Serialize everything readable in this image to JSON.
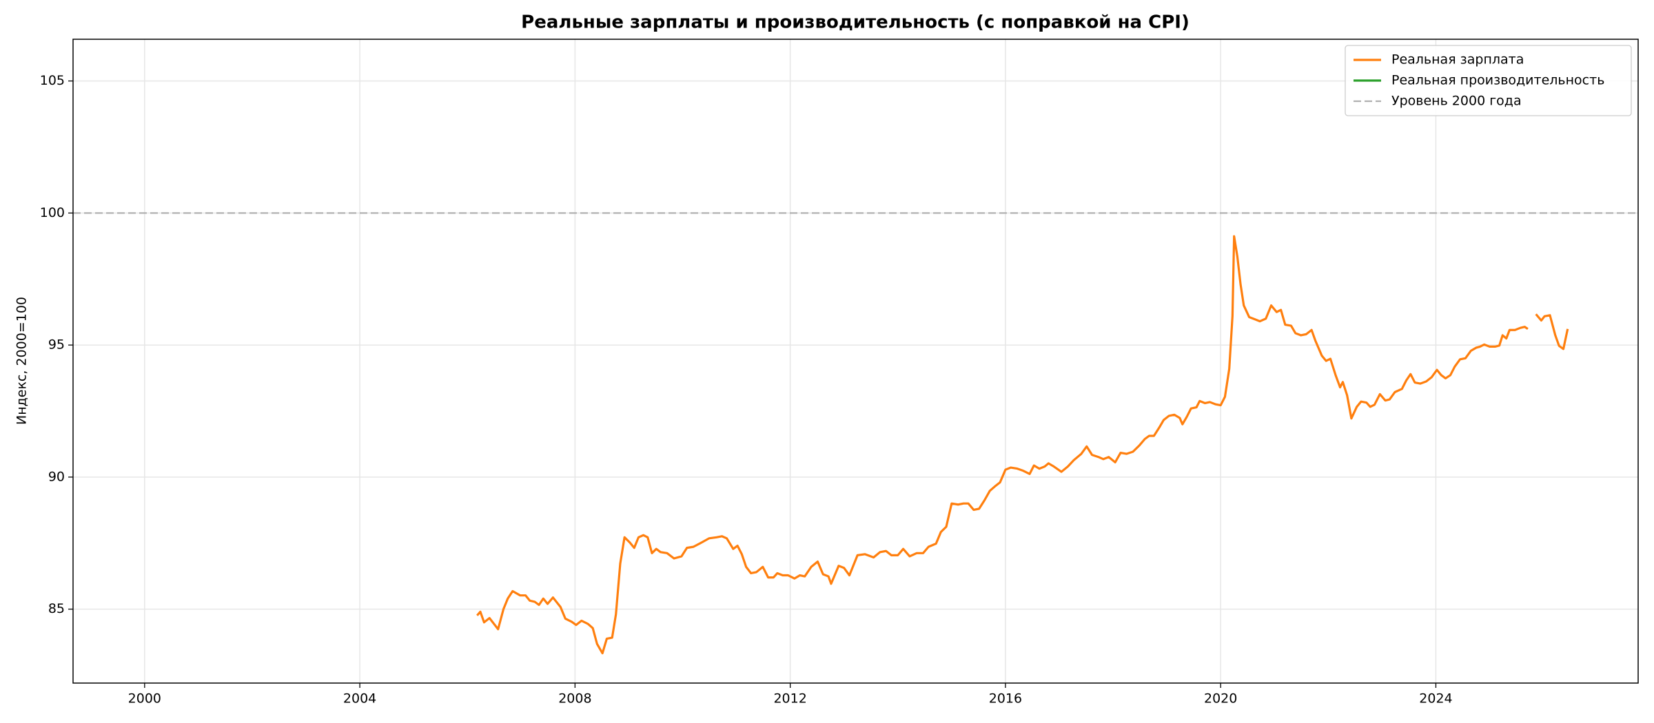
{
  "chart_data": {
    "type": "line",
    "title": "Реальные зарплаты и производительность (с поправкой на CPI)",
    "y_label": "Индекс, 2000=100",
    "xlim": [
      1998.67,
      2027.76
    ],
    "ylim": [
      82.2,
      106.58
    ],
    "xticks": [
      2000,
      2004,
      2008,
      2012,
      2016,
      2020,
      2024
    ],
    "yticks": [
      85,
      90,
      95,
      100,
      105
    ],
    "grid": true,
    "legend": "upper right",
    "reference_line": {
      "name": "Уровень 2000 года",
      "value": 100,
      "color": "#b0b0b0",
      "style": "dashed"
    },
    "series": [
      {
        "name": "Реальная зарплата",
        "color": "#ff7f0e",
        "x": [
          2006.18,
          2006.24,
          2006.31,
          2006.41,
          2006.57,
          2006.67,
          2006.75,
          2006.84,
          2006.98,
          2007.08,
          2007.16,
          2007.25,
          2007.33,
          2007.41,
          2007.49,
          2007.59,
          2007.73,
          2007.82,
          2007.94,
          2008.02,
          2008.12,
          2008.24,
          2008.33,
          2008.41,
          2008.51,
          2008.59,
          2008.69,
          2008.76,
          2008.84,
          2008.92,
          2009.02,
          2009.1,
          2009.18,
          2009.27,
          2009.35,
          2009.43,
          2009.51,
          2009.59,
          2009.71,
          2009.84,
          2009.98,
          2010.08,
          2010.2,
          2010.35,
          2010.49,
          2010.63,
          2010.73,
          2010.82,
          2010.94,
          2011.02,
          2011.1,
          2011.18,
          2011.27,
          2011.37,
          2011.49,
          2011.59,
          2011.69,
          2011.76,
          2011.86,
          2011.96,
          2012.08,
          2012.18,
          2012.27,
          2012.39,
          2012.51,
          2012.61,
          2012.71,
          2012.76,
          2012.9,
          2013.0,
          2013.1,
          2013.25,
          2013.39,
          2013.55,
          2013.67,
          2013.78,
          2013.88,
          2014.0,
          2014.1,
          2014.22,
          2014.35,
          2014.47,
          2014.57,
          2014.71,
          2014.8,
          2014.9,
          2015.0,
          2015.12,
          2015.22,
          2015.31,
          2015.41,
          2015.51,
          2015.61,
          2015.71,
          2015.8,
          2015.9,
          2016.0,
          2016.1,
          2016.22,
          2016.33,
          2016.45,
          2016.53,
          2016.63,
          2016.73,
          2016.8,
          2016.9,
          2017.04,
          2017.16,
          2017.27,
          2017.41,
          2017.51,
          2017.61,
          2017.73,
          2017.82,
          2017.92,
          2018.04,
          2018.14,
          2018.25,
          2018.37,
          2018.49,
          2018.59,
          2018.67,
          2018.76,
          2018.86,
          2018.94,
          2019.04,
          2019.14,
          2019.24,
          2019.29,
          2019.37,
          2019.45,
          2019.55,
          2019.61,
          2019.71,
          2019.8,
          2019.9,
          2020.0,
          2020.08,
          2020.16,
          2020.22,
          2020.25,
          2020.31,
          2020.37,
          2020.43,
          2020.53,
          2020.63,
          2020.73,
          2020.84,
          2020.94,
          2021.04,
          2021.12,
          2021.2,
          2021.31,
          2021.39,
          2021.49,
          2021.59,
          2021.69,
          2021.76,
          2021.88,
          2021.96,
          2022.04,
          2022.14,
          2022.22,
          2022.27,
          2022.35,
          2022.43,
          2022.53,
          2022.61,
          2022.71,
          2022.78,
          2022.86,
          2022.96,
          2023.06,
          2023.14,
          2023.24,
          2023.37,
          2023.45,
          2023.53,
          2023.61,
          2023.71,
          2023.82,
          2023.92,
          2024.02,
          2024.1,
          2024.18,
          2024.27,
          2024.35,
          2024.45,
          2024.55,
          2024.65,
          2024.75,
          2024.82,
          2024.9,
          2025.0,
          2025.1,
          2025.18,
          2025.24,
          2025.31,
          2025.37,
          2025.47,
          2025.57,
          2025.65,
          2025.71,
          2025.8,
          2025.86,
          2025.96,
          2026.02,
          2026.12,
          2026.22,
          2026.29,
          2026.37,
          2026.45
        ],
        "values": [
          84.76,
          84.9,
          84.5,
          84.66,
          84.24,
          85.0,
          85.4,
          85.68,
          85.52,
          85.52,
          85.32,
          85.28,
          85.16,
          85.4,
          85.2,
          85.44,
          85.08,
          84.64,
          84.52,
          84.4,
          84.56,
          84.44,
          84.28,
          83.68,
          83.33,
          83.88,
          83.92,
          84.8,
          86.72,
          87.72,
          87.52,
          87.32,
          87.72,
          87.8,
          87.72,
          87.12,
          87.28,
          87.16,
          87.12,
          86.92,
          87.0,
          87.32,
          87.36,
          87.52,
          87.68,
          87.72,
          87.76,
          87.68,
          87.28,
          87.4,
          87.08,
          86.6,
          86.36,
          86.4,
          86.6,
          86.2,
          86.2,
          86.36,
          86.28,
          86.28,
          86.16,
          86.28,
          86.24,
          86.6,
          86.8,
          86.32,
          86.24,
          85.96,
          86.64,
          86.56,
          86.28,
          87.04,
          87.08,
          86.96,
          87.16,
          87.2,
          87.04,
          87.04,
          87.28,
          87.0,
          87.12,
          87.12,
          87.36,
          87.48,
          87.92,
          88.12,
          89.0,
          88.96,
          89.0,
          89.0,
          88.76,
          88.8,
          89.12,
          89.48,
          89.64,
          89.8,
          90.28,
          90.36,
          90.32,
          90.24,
          90.12,
          90.44,
          90.32,
          90.4,
          90.52,
          90.4,
          90.2,
          90.4,
          90.64,
          90.88,
          91.16,
          90.84,
          90.76,
          90.68,
          90.76,
          90.56,
          90.92,
          90.88,
          90.96,
          91.2,
          91.44,
          91.56,
          91.56,
          91.88,
          92.16,
          92.32,
          92.36,
          92.24,
          92.0,
          92.28,
          92.6,
          92.64,
          92.88,
          92.8,
          92.84,
          92.76,
          92.72,
          93.04,
          94.1,
          96.1,
          99.12,
          98.36,
          97.3,
          96.5,
          96.06,
          95.98,
          95.9,
          96.0,
          96.5,
          96.25,
          96.33,
          95.77,
          95.73,
          95.45,
          95.37,
          95.41,
          95.57,
          95.17,
          94.6,
          94.4,
          94.48,
          93.84,
          93.4,
          93.6,
          93.1,
          92.22,
          92.66,
          92.86,
          92.82,
          92.66,
          92.74,
          93.14,
          92.9,
          92.94,
          93.22,
          93.34,
          93.66,
          93.9,
          93.58,
          93.54,
          93.62,
          93.78,
          94.06,
          93.86,
          93.74,
          93.86,
          94.18,
          94.46,
          94.5,
          94.78,
          94.9,
          94.94,
          95.02,
          94.94,
          94.94,
          94.98,
          95.37,
          95.25,
          95.57,
          95.57,
          95.65,
          95.69,
          95.61,
          null,
          96.17,
          95.93,
          96.09,
          96.13,
          95.37,
          94.97,
          94.85,
          95.61
        ]
      },
      {
        "name": "Реальная производительность",
        "color": "#2ca02c",
        "x": [],
        "values": []
      }
    ]
  }
}
